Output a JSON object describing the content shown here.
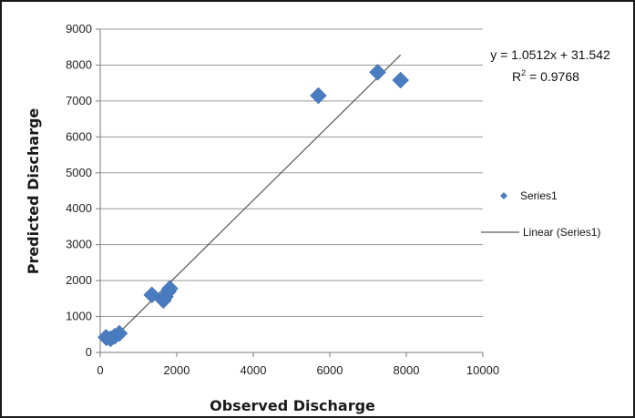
{
  "chart_data": {
    "type": "scatter",
    "title": "",
    "xlabel": "Observed Discharge",
    "ylabel": "Predicted Discharge",
    "xlim": [
      0,
      10000
    ],
    "ylim": [
      0,
      9000
    ],
    "x_ticks": [
      0,
      2000,
      4000,
      6000,
      8000,
      10000
    ],
    "y_ticks": [
      0,
      1000,
      2000,
      3000,
      4000,
      5000,
      6000,
      7000,
      8000,
      9000
    ],
    "grid": "horizontal",
    "legend_position": "right",
    "series": [
      {
        "name": "Series1",
        "marker": "diamond",
        "color": "#4a7cc0",
        "x": [
          150,
          270,
          380,
          500,
          1350,
          1650,
          1700,
          1780,
          1820,
          5700,
          7250,
          7850
        ],
        "y": [
          420,
          380,
          450,
          530,
          1600,
          1450,
          1550,
          1700,
          1780,
          7150,
          7800,
          7580
        ]
      }
    ],
    "trendline": {
      "name": "Linear (Series1)",
      "slope": 1.0512,
      "intercept": 31.542,
      "x_range": [
        150,
        7850
      ],
      "color": "#555555"
    },
    "annotations": {
      "equation": "y = 1.0512x + 31.542",
      "r2_prefix": "R",
      "r2_exponent": "2",
      "r2_suffix": " = 0.9768"
    },
    "legend": [
      {
        "label": "Series1",
        "kind": "marker"
      },
      {
        "label": "Linear (Series1)",
        "kind": "line"
      }
    ]
  }
}
